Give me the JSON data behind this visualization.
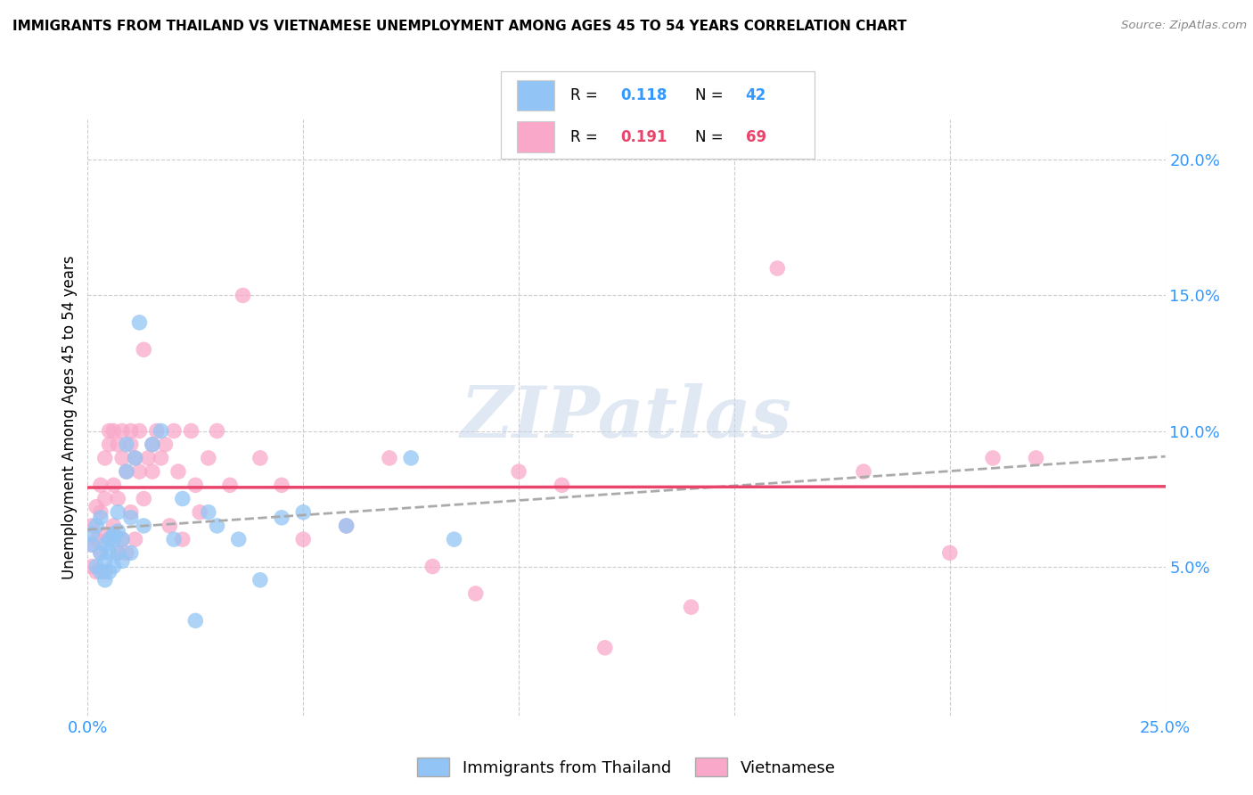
{
  "title": "IMMIGRANTS FROM THAILAND VS VIETNAMESE UNEMPLOYMENT AMONG AGES 45 TO 54 YEARS CORRELATION CHART",
  "source": "Source: ZipAtlas.com",
  "ylabel": "Unemployment Among Ages 45 to 54 years",
  "xlim": [
    0.0,
    0.25
  ],
  "ylim": [
    -0.005,
    0.215
  ],
  "yticks": [
    0.05,
    0.1,
    0.15,
    0.2
  ],
  "xticks": [
    0.0,
    0.05,
    0.1,
    0.15,
    0.2,
    0.25
  ],
  "legend1_R": "0.118",
  "legend1_N": "42",
  "legend2_R": "0.191",
  "legend2_N": "69",
  "color_thailand": "#92C5F5",
  "color_vietnamese": "#F9A8C9",
  "color_line_thailand": "#5B9BD5",
  "color_line_vietnamese": "#E8446C",
  "watermark": "ZIPatlas",
  "thailand_x": [
    0.001,
    0.001,
    0.002,
    0.002,
    0.003,
    0.003,
    0.003,
    0.004,
    0.004,
    0.004,
    0.005,
    0.005,
    0.005,
    0.006,
    0.006,
    0.006,
    0.007,
    0.007,
    0.007,
    0.008,
    0.008,
    0.009,
    0.009,
    0.01,
    0.01,
    0.011,
    0.012,
    0.013,
    0.015,
    0.017,
    0.02,
    0.022,
    0.025,
    0.028,
    0.03,
    0.035,
    0.04,
    0.045,
    0.05,
    0.06,
    0.075,
    0.085
  ],
  "thailand_y": [
    0.058,
    0.062,
    0.05,
    0.065,
    0.048,
    0.055,
    0.068,
    0.052,
    0.058,
    0.045,
    0.06,
    0.048,
    0.055,
    0.06,
    0.062,
    0.05,
    0.07,
    0.055,
    0.063,
    0.052,
    0.06,
    0.095,
    0.085,
    0.068,
    0.055,
    0.09,
    0.14,
    0.065,
    0.095,
    0.1,
    0.06,
    0.075,
    0.03,
    0.07,
    0.065,
    0.06,
    0.045,
    0.068,
    0.07,
    0.065,
    0.09,
    0.06
  ],
  "vietnamese_x": [
    0.001,
    0.001,
    0.001,
    0.002,
    0.002,
    0.002,
    0.003,
    0.003,
    0.003,
    0.004,
    0.004,
    0.004,
    0.004,
    0.005,
    0.005,
    0.005,
    0.006,
    0.006,
    0.006,
    0.007,
    0.007,
    0.007,
    0.008,
    0.008,
    0.008,
    0.009,
    0.009,
    0.01,
    0.01,
    0.01,
    0.011,
    0.011,
    0.012,
    0.012,
    0.013,
    0.013,
    0.014,
    0.015,
    0.015,
    0.016,
    0.017,
    0.018,
    0.019,
    0.02,
    0.021,
    0.022,
    0.024,
    0.025,
    0.026,
    0.028,
    0.03,
    0.033,
    0.036,
    0.04,
    0.045,
    0.05,
    0.06,
    0.07,
    0.08,
    0.09,
    0.1,
    0.11,
    0.12,
    0.14,
    0.16,
    0.18,
    0.2,
    0.21,
    0.22
  ],
  "vietnamese_y": [
    0.058,
    0.05,
    0.065,
    0.048,
    0.06,
    0.072,
    0.055,
    0.07,
    0.08,
    0.062,
    0.075,
    0.048,
    0.09,
    0.1,
    0.06,
    0.095,
    0.08,
    0.1,
    0.065,
    0.055,
    0.075,
    0.095,
    0.09,
    0.06,
    0.1,
    0.055,
    0.085,
    0.095,
    0.07,
    0.1,
    0.09,
    0.06,
    0.1,
    0.085,
    0.13,
    0.075,
    0.09,
    0.085,
    0.095,
    0.1,
    0.09,
    0.095,
    0.065,
    0.1,
    0.085,
    0.06,
    0.1,
    0.08,
    0.07,
    0.09,
    0.1,
    0.08,
    0.15,
    0.09,
    0.08,
    0.06,
    0.065,
    0.09,
    0.05,
    0.04,
    0.085,
    0.08,
    0.02,
    0.035,
    0.16,
    0.085,
    0.055,
    0.09,
    0.09
  ]
}
